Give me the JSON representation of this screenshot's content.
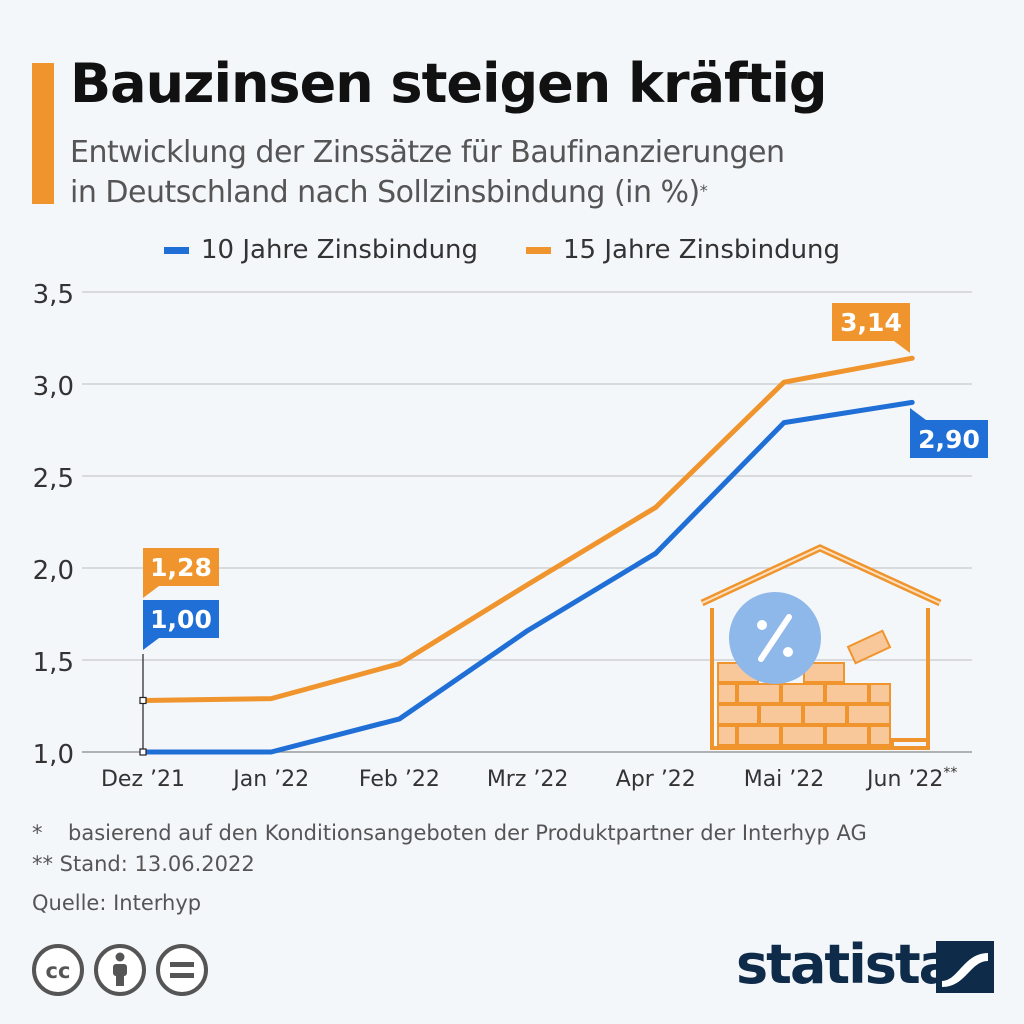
{
  "header": {
    "title": "Bauzinsen steigen kräftig",
    "subtitle_line1": "Entwicklung der Zinssätze für Baufinanzierungen",
    "subtitle_line2": "in Deutschland nach Sollzinsbindung (in %)",
    "subtitle_mark": "*",
    "accent_color": "#f0952e"
  },
  "chart_data": {
    "type": "line",
    "categories": [
      "Dez ’21",
      "Jan ’22",
      "Feb ’22",
      "Mrz ’22",
      "Apr ’22",
      "Mai ’22",
      "Jun ’22**"
    ],
    "series": [
      {
        "name": "10 Jahre Zinsbindung",
        "color": "#1f6fd6",
        "values": [
          1.0,
          1.0,
          1.18,
          1.66,
          2.08,
          2.79,
          2.9
        ]
      },
      {
        "name": "15 Jahre Zinsbindung",
        "color": "#f0952e",
        "values": [
          1.28,
          1.29,
          1.48,
          1.91,
          2.33,
          3.01,
          3.14
        ]
      }
    ],
    "y_ticks": [
      "3,5",
      "3,0",
      "2,5",
      "2,0",
      "1,5",
      "1,0"
    ],
    "y_tick_values": [
      3.5,
      3.0,
      2.5,
      2.0,
      1.5,
      1.0
    ],
    "ylim": [
      1.0,
      3.5
    ],
    "grid": true,
    "legend_position": "top",
    "annotations": [
      {
        "text": "1,28",
        "series": 1,
        "index": 0
      },
      {
        "text": "1,00",
        "series": 0,
        "index": 0
      },
      {
        "text": "3,14",
        "series": 1,
        "index": 6
      },
      {
        "text": "2,90",
        "series": 0,
        "index": 6
      }
    ],
    "illustration": "house-bricks-percent-icon"
  },
  "footnotes": {
    "star_1": "*",
    "note_1": "basierend auf den Konditionsangeboten der Produktpartner der Interhyp AG",
    "note_2": "** Stand: 13.06.2022",
    "source": "Quelle: Interhyp"
  },
  "license_icons": [
    "cc-icon",
    "by-icon",
    "nd-icon"
  ],
  "brand": {
    "name": "statista",
    "color": "#0e2b4a"
  }
}
